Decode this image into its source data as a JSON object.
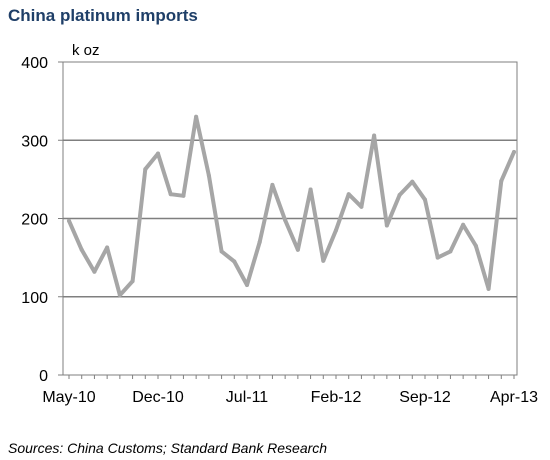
{
  "title": "China platinum imports",
  "source": "Sources: China Customs; Standard Bank Research",
  "chart_data": {
    "type": "line",
    "title": "China platinum imports",
    "ylabel": "k oz",
    "xlabel": "",
    "ylim": [
      0,
      400
    ],
    "yticks": [
      0,
      100,
      200,
      300,
      400
    ],
    "x": [
      "May-10",
      "Jun-10",
      "Jul-10",
      "Aug-10",
      "Sep-10",
      "Oct-10",
      "Nov-10",
      "Dec-10",
      "Jan-11",
      "Feb-11",
      "Mar-11",
      "Apr-11",
      "May-11",
      "Jun-11",
      "Jul-11",
      "Aug-11",
      "Sep-11",
      "Oct-11",
      "Nov-11",
      "Dec-11",
      "Jan-12",
      "Feb-12",
      "Mar-12",
      "Apr-12",
      "May-12",
      "Jun-12",
      "Jul-12",
      "Aug-12",
      "Sep-12",
      "Oct-12",
      "Nov-12",
      "Dec-12",
      "Jan-13",
      "Feb-13",
      "Mar-13",
      "Apr-13"
    ],
    "xtick_labels": [
      "May-10",
      "Dec-10",
      "Jul-11",
      "Feb-12",
      "Sep-12",
      "Apr-13"
    ],
    "grid": "horizontal",
    "color": "#a6a6a6",
    "series": [
      {
        "values": [
          197,
          160,
          132,
          163,
          102,
          120,
          263,
          283,
          231,
          229,
          330,
          255,
          158,
          145,
          115,
          170,
          243,
          198,
          160,
          237,
          146,
          185,
          231,
          215,
          306,
          191,
          230,
          247,
          224,
          150,
          158,
          192,
          165,
          110,
          248,
          285
        ]
      }
    ]
  }
}
